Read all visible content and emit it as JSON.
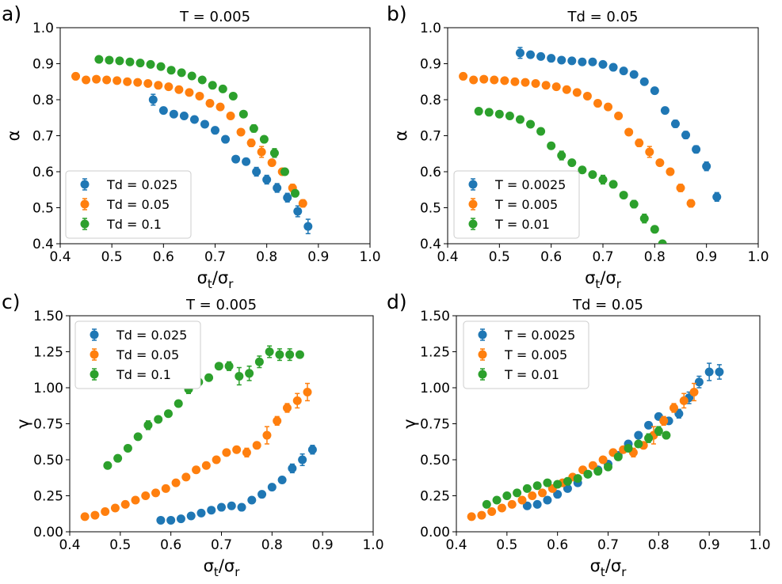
{
  "chart_data": [
    {
      "type": "scatter",
      "panel_letter": "a)",
      "title": "T = 0.005",
      "xlabel_main": "σ",
      "xlabel_sub1": "t",
      "xlabel_mid": "/σ",
      "xlabel_sub2": "r",
      "ylabel": "α",
      "xlim": [
        0.4,
        1.0
      ],
      "ylim": [
        0.4,
        1.0
      ],
      "xticks": [
        "0.4",
        "0.5",
        "0.6",
        "0.7",
        "0.8",
        "0.9",
        "1.0"
      ],
      "yticks": [
        "0.4",
        "0.5",
        "0.6",
        "0.7",
        "0.8",
        "0.9",
        "1.0"
      ],
      "legend_position": "lower-left",
      "series": [
        {
          "name": "Td = 0.025",
          "color": "#1f77b4",
          "x": [
            0.58,
            0.6,
            0.62,
            0.64,
            0.66,
            0.68,
            0.7,
            0.72,
            0.74,
            0.76,
            0.78,
            0.8,
            0.82,
            0.84,
            0.86,
            0.88
          ],
          "y": [
            0.8,
            0.77,
            0.76,
            0.755,
            0.745,
            0.732,
            0.715,
            0.69,
            0.635,
            0.628,
            0.6,
            0.578,
            0.555,
            0.528,
            0.49,
            0.448
          ],
          "err": [
            0.015,
            0.008,
            0.008,
            0.008,
            0.008,
            0.008,
            0.008,
            0.008,
            0.008,
            0.008,
            0.012,
            0.012,
            0.012,
            0.012,
            0.015,
            0.02
          ]
        },
        {
          "name": "Td = 0.05",
          "color": "#ff7f0e",
          "x": [
            0.43,
            0.45,
            0.47,
            0.49,
            0.51,
            0.53,
            0.55,
            0.57,
            0.59,
            0.61,
            0.63,
            0.65,
            0.67,
            0.69,
            0.71,
            0.73,
            0.75,
            0.77,
            0.79,
            0.81,
            0.83,
            0.85,
            0.87
          ],
          "y": [
            0.865,
            0.855,
            0.857,
            0.855,
            0.853,
            0.85,
            0.848,
            0.845,
            0.84,
            0.836,
            0.828,
            0.82,
            0.81,
            0.79,
            0.78,
            0.755,
            0.71,
            0.68,
            0.655,
            0.625,
            0.6,
            0.555,
            0.512
          ],
          "err": [
            0.008,
            0.006,
            0.006,
            0.006,
            0.006,
            0.006,
            0.006,
            0.006,
            0.006,
            0.006,
            0.006,
            0.006,
            0.006,
            0.006,
            0.006,
            0.008,
            0.008,
            0.01,
            0.015,
            0.008,
            0.008,
            0.01,
            0.01
          ]
        },
        {
          "name": "Td = 0.1",
          "color": "#2ca02c",
          "x": [
            0.475,
            0.495,
            0.515,
            0.535,
            0.555,
            0.575,
            0.595,
            0.615,
            0.635,
            0.655,
            0.675,
            0.695,
            0.715,
            0.735,
            0.755,
            0.775,
            0.795,
            0.815,
            0.835,
            0.855
          ],
          "y": [
            0.912,
            0.91,
            0.908,
            0.905,
            0.902,
            0.898,
            0.892,
            0.882,
            0.875,
            0.866,
            0.855,
            0.84,
            0.83,
            0.81,
            0.76,
            0.72,
            0.69,
            0.652,
            0.6,
            0.54
          ],
          "err": [
            0.006,
            0.006,
            0.006,
            0.006,
            0.006,
            0.006,
            0.006,
            0.006,
            0.006,
            0.006,
            0.006,
            0.006,
            0.006,
            0.006,
            0.006,
            0.01,
            0.008,
            0.012,
            0.008,
            0.008
          ]
        }
      ]
    },
    {
      "type": "scatter",
      "panel_letter": "b)",
      "title": "Td = 0.05",
      "xlabel_main": "σ",
      "xlabel_sub1": "t",
      "xlabel_mid": "/σ",
      "xlabel_sub2": "r",
      "ylabel": "α",
      "xlim": [
        0.4,
        1.0
      ],
      "ylim": [
        0.4,
        1.0
      ],
      "xticks": [
        "0.4",
        "0.5",
        "0.6",
        "0.7",
        "0.8",
        "0.9",
        "1.0"
      ],
      "yticks": [
        "0.4",
        "0.5",
        "0.6",
        "0.7",
        "0.8",
        "0.9",
        "1.0"
      ],
      "legend_position": "lower-left",
      "series": [
        {
          "name": "T = 0.0025",
          "color": "#1f77b4",
          "x": [
            0.54,
            0.56,
            0.58,
            0.6,
            0.62,
            0.64,
            0.66,
            0.68,
            0.7,
            0.72,
            0.74,
            0.76,
            0.78,
            0.8,
            0.82,
            0.84,
            0.86,
            0.88,
            0.9,
            0.92
          ],
          "y": [
            0.93,
            0.925,
            0.92,
            0.915,
            0.91,
            0.908,
            0.905,
            0.905,
            0.898,
            0.89,
            0.88,
            0.87,
            0.85,
            0.825,
            0.77,
            0.733,
            0.702,
            0.662,
            0.615,
            0.53
          ],
          "err": [
            0.015,
            0.008,
            0.006,
            0.006,
            0.006,
            0.006,
            0.006,
            0.006,
            0.006,
            0.006,
            0.006,
            0.006,
            0.006,
            0.008,
            0.008,
            0.01,
            0.01,
            0.01,
            0.012,
            0.012
          ]
        },
        {
          "name": "T = 0.005",
          "color": "#ff7f0e",
          "x": [
            0.43,
            0.45,
            0.47,
            0.49,
            0.51,
            0.53,
            0.55,
            0.57,
            0.59,
            0.61,
            0.63,
            0.65,
            0.67,
            0.69,
            0.71,
            0.73,
            0.75,
            0.77,
            0.79,
            0.81,
            0.83,
            0.85,
            0.87
          ],
          "y": [
            0.865,
            0.855,
            0.857,
            0.855,
            0.853,
            0.85,
            0.848,
            0.845,
            0.84,
            0.836,
            0.828,
            0.82,
            0.81,
            0.79,
            0.78,
            0.755,
            0.71,
            0.68,
            0.655,
            0.625,
            0.6,
            0.555,
            0.512
          ],
          "err": [
            0.008,
            0.006,
            0.006,
            0.006,
            0.006,
            0.006,
            0.006,
            0.006,
            0.006,
            0.006,
            0.006,
            0.006,
            0.006,
            0.006,
            0.006,
            0.008,
            0.008,
            0.01,
            0.015,
            0.008,
            0.008,
            0.01,
            0.01
          ]
        },
        {
          "name": "T = 0.01",
          "color": "#2ca02c",
          "x": [
            0.46,
            0.48,
            0.5,
            0.52,
            0.54,
            0.56,
            0.58,
            0.6,
            0.62,
            0.64,
            0.66,
            0.68,
            0.7,
            0.72,
            0.74,
            0.76,
            0.78,
            0.8,
            0.815
          ],
          "y": [
            0.768,
            0.765,
            0.76,
            0.755,
            0.745,
            0.732,
            0.712,
            0.672,
            0.645,
            0.625,
            0.605,
            0.592,
            0.578,
            0.565,
            0.535,
            0.51,
            0.47,
            0.44,
            0.4
          ],
          "err": [
            0.006,
            0.006,
            0.006,
            0.006,
            0.006,
            0.006,
            0.008,
            0.008,
            0.012,
            0.008,
            0.008,
            0.008,
            0.012,
            0.008,
            0.008,
            0.01,
            0.012,
            0.008,
            0.008
          ]
        }
      ]
    },
    {
      "type": "scatter",
      "panel_letter": "c)",
      "title": "T = 0.005",
      "xlabel_main": "σ",
      "xlabel_sub1": "t",
      "xlabel_mid": "/σ",
      "xlabel_sub2": "r",
      "ylabel": "γ",
      "xlim": [
        0.4,
        1.0
      ],
      "ylim": [
        0.0,
        1.5
      ],
      "xticks": [
        "0.4",
        "0.5",
        "0.6",
        "0.7",
        "0.8",
        "0.9",
        "1.0"
      ],
      "yticks": [
        "0.00",
        "0.25",
        "0.50",
        "0.75",
        "1.00",
        "1.25",
        "1.50"
      ],
      "legend_position": "upper-left",
      "series": [
        {
          "name": "Td = 0.025",
          "color": "#1f77b4",
          "x": [
            0.58,
            0.6,
            0.62,
            0.64,
            0.66,
            0.68,
            0.7,
            0.72,
            0.74,
            0.76,
            0.78,
            0.8,
            0.82,
            0.84,
            0.86,
            0.88
          ],
          "y": [
            0.08,
            0.08,
            0.09,
            0.11,
            0.13,
            0.15,
            0.17,
            0.18,
            0.17,
            0.22,
            0.26,
            0.31,
            0.36,
            0.44,
            0.5,
            0.57
          ],
          "err": [
            0.01,
            0.01,
            0.01,
            0.01,
            0.01,
            0.01,
            0.01,
            0.01,
            0.01,
            0.01,
            0.01,
            0.01,
            0.02,
            0.03,
            0.04,
            0.03
          ]
        },
        {
          "name": "Td = 0.05",
          "color": "#ff7f0e",
          "x": [
            0.43,
            0.45,
            0.47,
            0.49,
            0.51,
            0.53,
            0.55,
            0.57,
            0.59,
            0.61,
            0.63,
            0.65,
            0.67,
            0.69,
            0.71,
            0.73,
            0.75,
            0.77,
            0.79,
            0.81,
            0.83,
            0.85,
            0.87
          ],
          "y": [
            0.105,
            0.115,
            0.14,
            0.165,
            0.19,
            0.22,
            0.25,
            0.27,
            0.3,
            0.34,
            0.38,
            0.43,
            0.46,
            0.5,
            0.55,
            0.57,
            0.55,
            0.6,
            0.67,
            0.77,
            0.86,
            0.91,
            0.97
          ],
          "err": [
            0.01,
            0.01,
            0.01,
            0.01,
            0.01,
            0.01,
            0.01,
            0.01,
            0.01,
            0.01,
            0.01,
            0.01,
            0.01,
            0.01,
            0.01,
            0.02,
            0.03,
            0.02,
            0.06,
            0.03,
            0.03,
            0.05,
            0.06
          ]
        },
        {
          "name": "Td = 0.1",
          "color": "#2ca02c",
          "x": [
            0.475,
            0.495,
            0.515,
            0.535,
            0.555,
            0.575,
            0.595,
            0.615,
            0.635,
            0.655,
            0.675,
            0.695,
            0.715,
            0.735,
            0.755,
            0.775,
            0.795,
            0.815,
            0.835,
            0.855
          ],
          "y": [
            0.46,
            0.51,
            0.58,
            0.66,
            0.74,
            0.78,
            0.82,
            0.89,
            0.99,
            1.04,
            1.07,
            1.15,
            1.15,
            1.08,
            1.1,
            1.18,
            1.25,
            1.23,
            1.23,
            1.23
          ],
          "err": [
            0.01,
            0.01,
            0.01,
            0.01,
            0.03,
            0.01,
            0.01,
            0.01,
            0.03,
            0.01,
            0.01,
            0.01,
            0.03,
            0.06,
            0.05,
            0.04,
            0.04,
            0.04,
            0.04,
            0.01
          ]
        }
      ]
    },
    {
      "type": "scatter",
      "panel_letter": "d)",
      "title": "Td = 0.05",
      "xlabel_main": "σ",
      "xlabel_sub1": "t",
      "xlabel_mid": "/σ",
      "xlabel_sub2": "r",
      "ylabel": "γ",
      "xlim": [
        0.4,
        1.0
      ],
      "ylim": [
        0.0,
        1.5
      ],
      "xticks": [
        "0.4",
        "0.5",
        "0.6",
        "0.7",
        "0.8",
        "0.9",
        "1.0"
      ],
      "yticks": [
        "0.00",
        "0.25",
        "0.50",
        "0.75",
        "1.00",
        "1.25",
        "1.50"
      ],
      "legend_position": "upper-left",
      "series": [
        {
          "name": "T = 0.0025",
          "color": "#1f77b4",
          "x": [
            0.54,
            0.56,
            0.58,
            0.6,
            0.62,
            0.64,
            0.66,
            0.68,
            0.7,
            0.72,
            0.74,
            0.76,
            0.78,
            0.8,
            0.82,
            0.84,
            0.86,
            0.88,
            0.9,
            0.92
          ],
          "y": [
            0.18,
            0.19,
            0.22,
            0.26,
            0.3,
            0.34,
            0.4,
            0.43,
            0.47,
            0.53,
            0.61,
            0.67,
            0.74,
            0.8,
            0.77,
            0.82,
            0.93,
            1.04,
            1.11,
            1.11
          ],
          "err": [
            0.01,
            0.01,
            0.01,
            0.01,
            0.01,
            0.01,
            0.01,
            0.01,
            0.01,
            0.01,
            0.01,
            0.01,
            0.02,
            0.02,
            0.02,
            0.03,
            0.04,
            0.04,
            0.06,
            0.05
          ]
        },
        {
          "name": "T = 0.005",
          "color": "#ff7f0e",
          "x": [
            0.43,
            0.45,
            0.47,
            0.49,
            0.51,
            0.53,
            0.55,
            0.57,
            0.59,
            0.61,
            0.63,
            0.65,
            0.67,
            0.69,
            0.71,
            0.73,
            0.75,
            0.77,
            0.79,
            0.81,
            0.83,
            0.85,
            0.87
          ],
          "y": [
            0.105,
            0.115,
            0.14,
            0.165,
            0.19,
            0.22,
            0.25,
            0.27,
            0.3,
            0.34,
            0.38,
            0.43,
            0.46,
            0.5,
            0.55,
            0.57,
            0.55,
            0.6,
            0.67,
            0.77,
            0.86,
            0.91,
            0.97
          ],
          "err": [
            0.01,
            0.01,
            0.01,
            0.01,
            0.01,
            0.01,
            0.01,
            0.01,
            0.01,
            0.01,
            0.01,
            0.01,
            0.01,
            0.01,
            0.01,
            0.02,
            0.03,
            0.02,
            0.06,
            0.03,
            0.03,
            0.05,
            0.06
          ]
        },
        {
          "name": "T = 0.01",
          "color": "#2ca02c",
          "x": [
            0.46,
            0.48,
            0.5,
            0.52,
            0.54,
            0.56,
            0.58,
            0.6,
            0.62,
            0.64,
            0.66,
            0.68,
            0.7,
            0.72,
            0.74,
            0.76,
            0.78,
            0.8,
            0.815
          ],
          "y": [
            0.19,
            0.22,
            0.25,
            0.27,
            0.3,
            0.32,
            0.34,
            0.33,
            0.35,
            0.37,
            0.4,
            0.42,
            0.45,
            0.52,
            0.58,
            0.61,
            0.65,
            0.7,
            0.67
          ],
          "err": [
            0.01,
            0.01,
            0.01,
            0.01,
            0.01,
            0.01,
            0.01,
            0.01,
            0.01,
            0.01,
            0.01,
            0.01,
            0.01,
            0.02,
            0.02,
            0.02,
            0.03,
            0.03,
            0.02
          ]
        }
      ]
    }
  ]
}
